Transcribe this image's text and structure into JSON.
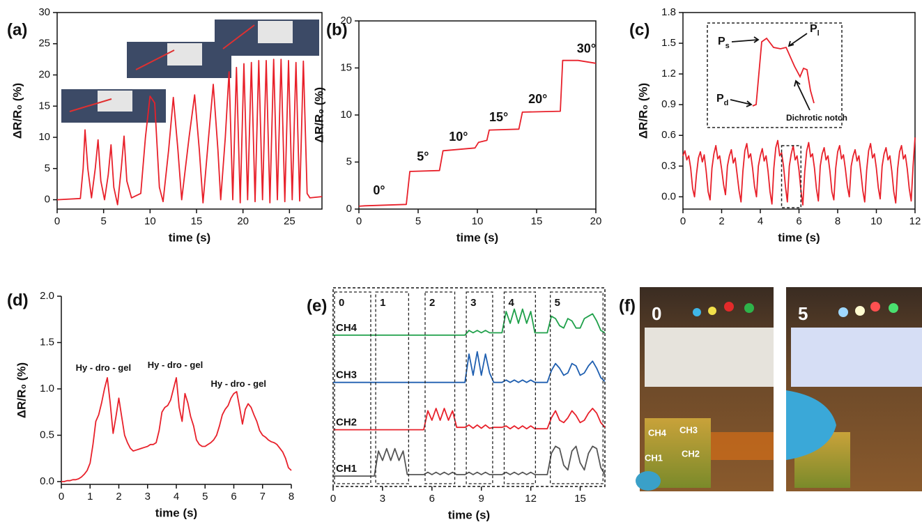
{
  "chart_data": [
    {
      "type": "line",
      "panel_label": "(a)",
      "xlabel": "time (s)",
      "ylabel": "ΔR/R₀ (%)",
      "color": "#e8202a",
      "xlim": [
        0,
        28.5
      ],
      "xticks": [
        0,
        5,
        10,
        15,
        20,
        25
      ],
      "ylim": [
        -1.5,
        30
      ],
      "yticks": [
        0,
        5,
        10,
        15,
        20,
        25,
        30
      ],
      "x": [
        0,
        2.5,
        2.8,
        3.0,
        3.3,
        3.7,
        4.1,
        4.4,
        4.7,
        5.1,
        5.5,
        5.8,
        6.1,
        6.5,
        6.9,
        7.2,
        7.5,
        8.0,
        9.0,
        9.5,
        10.0,
        10.5,
        11.0,
        11.4,
        12.0,
        12.5,
        13.0,
        13.4,
        14.2,
        14.8,
        15.3,
        15.7,
        16.3,
        16.8,
        17.3,
        17.6,
        18.1,
        18.5,
        18.9,
        19.3,
        19.7,
        20.1,
        20.5,
        20.9,
        21.3,
        21.7,
        22.1,
        22.5,
        22.9,
        23.3,
        23.7,
        24.1,
        24.5,
        24.9,
        25.3,
        25.7,
        26.1,
        26.5,
        26.9,
        27.2,
        28.5
      ],
      "values": [
        0,
        0.2,
        5,
        11.2,
        5,
        0.3,
        5,
        9.6,
        3,
        0,
        4,
        8.8,
        2,
        -0.8,
        5,
        10.2,
        3,
        0.3,
        1,
        10,
        16.6,
        15.5,
        2,
        -0.3,
        8,
        16.4,
        8,
        0,
        10,
        16.8,
        8,
        -0.5,
        10,
        18.5,
        8,
        0,
        10,
        20.5,
        0,
        21.2,
        -0.5,
        21.8,
        0,
        22,
        -0.3,
        22.3,
        0,
        22.3,
        -0.5,
        22.5,
        0,
        22.5,
        -0.3,
        22.3,
        0,
        22,
        -0.2,
        22.2,
        1,
        0.3,
        0.5
      ]
    },
    {
      "type": "line",
      "panel_label": "(b)",
      "xlabel": "time (s)",
      "ylabel": "ΔR/R₀ (%)",
      "color": "#e8202a",
      "xlim": [
        0,
        20
      ],
      "xticks": [
        0,
        5,
        10,
        15,
        20
      ],
      "ylim": [
        0,
        20
      ],
      "yticks": [
        0,
        5,
        10,
        15,
        20
      ],
      "annotations": [
        "0°",
        "5°",
        "10°",
        "15°",
        "20°",
        "30°"
      ],
      "x": [
        0,
        0.5,
        4.0,
        4.3,
        6.8,
        7.1,
        9.8,
        10.1,
        10.8,
        11.0,
        13.5,
        13.8,
        17.0,
        17.2,
        18.5,
        20
      ],
      "values": [
        0.3,
        0.35,
        0.5,
        4.0,
        4.1,
        6.2,
        6.5,
        7.1,
        7.3,
        8.4,
        8.5,
        10.3,
        10.4,
        15.8,
        15.8,
        15.5
      ]
    },
    {
      "type": "line",
      "panel_label": "(c)",
      "xlabel": "time (s)",
      "ylabel": "ΔR/R₀ (%)",
      "color": "#e8202a",
      "xlim": [
        0,
        12
      ],
      "xticks": [
        0,
        2,
        4,
        6,
        8,
        10,
        12
      ],
      "ylim": [
        -0.12,
        1.8
      ],
      "yticks": [
        {
          "value": 0,
          "label": "0.0"
        },
        0.3,
        0.6,
        0.9,
        1.2,
        1.5,
        1.8
      ],
      "inset_labels": [
        "Ps",
        "Pl",
        "Pd",
        "Dichrotic notch"
      ],
      "x": [
        0,
        0.1,
        0.2,
        0.3,
        0.4,
        0.5,
        0.6,
        0.7,
        0.8,
        0.9,
        1.0,
        1.1,
        1.2,
        1.3,
        1.4,
        1.5,
        1.6,
        1.7,
        1.8,
        1.9,
        2.0,
        2.1,
        2.2,
        2.3,
        2.4,
        2.5,
        2.6,
        2.7,
        2.8,
        2.9,
        3.0,
        3.1,
        3.2,
        3.3,
        3.4,
        3.5,
        3.6,
        3.7,
        3.8,
        3.9,
        4.0,
        4.1,
        4.2,
        4.3,
        4.4,
        4.5,
        4.6,
        4.7,
        4.8,
        4.9,
        5.0,
        5.1,
        5.2,
        5.3,
        5.4,
        5.5,
        5.6,
        5.7,
        5.8,
        5.9,
        6.0,
        6.1,
        6.2,
        6.3,
        6.4,
        6.5,
        6.6,
        6.7,
        6.8,
        6.9,
        7.0,
        7.1,
        7.2,
        7.3,
        7.4,
        7.5,
        7.6,
        7.7,
        7.8,
        7.9,
        8.0,
        8.1,
        8.2,
        8.3,
        8.4,
        8.5,
        8.6,
        8.7,
        8.8,
        8.9,
        9.0,
        9.1,
        9.2,
        9.3,
        9.4,
        9.5,
        9.6,
        9.7,
        9.8,
        9.9,
        10.0,
        10.1,
        10.2,
        10.3,
        10.4,
        10.5,
        10.6,
        10.7,
        10.8,
        10.9,
        11.0,
        11.1,
        11.2,
        11.3,
        11.4,
        11.5,
        11.6,
        11.7,
        11.8,
        11.9,
        12.0
      ],
      "values": [
        0.4,
        0.45,
        0.36,
        0.4,
        0.28,
        0.08,
        0.0,
        0.22,
        0.38,
        0.44,
        0.34,
        0.41,
        0.25,
        0.05,
        -0.03,
        0.28,
        0.42,
        0.5,
        0.37,
        0.4,
        0.27,
        0.12,
        0.02,
        0.3,
        0.4,
        0.46,
        0.33,
        0.38,
        0.22,
        0.06,
        -0.05,
        0.25,
        0.45,
        0.52,
        0.38,
        0.42,
        0.28,
        0.1,
        0.0,
        0.3,
        0.4,
        0.47,
        0.35,
        0.4,
        0.25,
        0.05,
        -0.07,
        0.28,
        0.48,
        0.55,
        0.4,
        0.43,
        0.3,
        0.1,
        -0.05,
        0.3,
        0.42,
        0.5,
        0.36,
        0.4,
        0.26,
        0.06,
        -0.08,
        0.25,
        0.45,
        0.53,
        0.39,
        0.42,
        0.28,
        0.08,
        -0.04,
        0.3,
        0.42,
        0.48,
        0.36,
        0.4,
        0.25,
        0.05,
        -0.03,
        0.28,
        0.44,
        0.5,
        0.37,
        0.41,
        0.27,
        0.1,
        0.0,
        0.3,
        0.4,
        0.46,
        0.35,
        0.4,
        0.24,
        0.06,
        -0.05,
        0.26,
        0.45,
        0.52,
        0.38,
        0.42,
        0.28,
        0.09,
        -0.02,
        0.3,
        0.42,
        0.48,
        0.36,
        0.4,
        0.25,
        0.05,
        -0.06,
        0.27,
        0.44,
        0.5,
        0.37,
        0.41,
        0.27,
        0.08,
        -0.04,
        0.3,
        0.58
      ]
    },
    {
      "type": "line",
      "panel_label": "(d)",
      "xlabel": "time (s)",
      "ylabel": "ΔR/R₀ (%)",
      "color": "#e8202a",
      "xlim": [
        0,
        8
      ],
      "xticks": [
        0,
        1,
        2,
        3,
        4,
        5,
        6,
        7,
        8
      ],
      "ylim": [
        -0.03,
        2.0
      ],
      "yticks": [
        {
          "value": 0,
          "label": "0.0"
        },
        0.5,
        {
          "value": 1,
          "label": "1.0"
        },
        1.5,
        {
          "value": 2,
          "label": "2.0"
        }
      ],
      "annotations": [
        "Hy - dro - gel",
        "Hy - dro - gel",
        "Hy - dro - gel"
      ],
      "x": [
        0,
        0.1,
        0.2,
        0.3,
        0.4,
        0.5,
        0.6,
        0.7,
        0.8,
        0.9,
        1.0,
        1.1,
        1.2,
        1.3,
        1.4,
        1.5,
        1.6,
        1.7,
        1.8,
        1.9,
        2.0,
        2.1,
        2.2,
        2.3,
        2.4,
        2.5,
        2.6,
        2.7,
        2.8,
        2.9,
        3.0,
        3.1,
        3.2,
        3.3,
        3.4,
        3.5,
        3.6,
        3.7,
        3.8,
        3.9,
        4.0,
        4.1,
        4.2,
        4.3,
        4.4,
        4.5,
        4.6,
        4.7,
        4.8,
        4.9,
        5.0,
        5.1,
        5.2,
        5.3,
        5.4,
        5.5,
        5.6,
        5.7,
        5.8,
        5.9,
        6.0,
        6.1,
        6.2,
        6.3,
        6.4,
        6.5,
        6.6,
        6.7,
        6.8,
        6.9,
        7.0,
        7.1,
        7.2,
        7.3,
        7.4,
        7.5,
        7.6,
        7.7,
        7.8,
        7.9,
        8.0
      ],
      "values": [
        0,
        0,
        0.01,
        0.01,
        0.02,
        0.02,
        0.03,
        0.05,
        0.08,
        0.12,
        0.2,
        0.4,
        0.65,
        0.72,
        0.85,
        1.0,
        1.12,
        0.85,
        0.52,
        0.7,
        0.9,
        0.7,
        0.5,
        0.42,
        0.36,
        0.33,
        0.34,
        0.35,
        0.36,
        0.37,
        0.38,
        0.4,
        0.4,
        0.42,
        0.55,
        0.75,
        0.8,
        0.82,
        0.88,
        1.0,
        1.12,
        0.8,
        0.65,
        0.95,
        0.85,
        0.7,
        0.6,
        0.45,
        0.4,
        0.38,
        0.38,
        0.4,
        0.42,
        0.45,
        0.5,
        0.6,
        0.72,
        0.78,
        0.82,
        0.9,
        0.95,
        0.97,
        0.8,
        0.62,
        0.78,
        0.84,
        0.8,
        0.72,
        0.65,
        0.55,
        0.5,
        0.48,
        0.45,
        0.43,
        0.42,
        0.4,
        0.36,
        0.32,
        0.25,
        0.15,
        0.12
      ]
    },
    {
      "type": "line",
      "panel_label": "(e)",
      "xlabel": "time (s)",
      "xlim": [
        0,
        16.5
      ],
      "xticks": [
        0,
        3,
        6,
        9,
        12,
        15
      ],
      "ylim": [
        -0.2,
        4.0
      ],
      "window_labels": [
        "0",
        "1",
        "2",
        "3",
        "4",
        "5"
      ],
      "x": [
        0,
        0.25,
        0.5,
        0.75,
        1,
        1.25,
        1.5,
        1.75,
        2,
        2.25,
        2.5,
        2.75,
        3,
        3.25,
        3.5,
        3.75,
        4,
        4.25,
        4.5,
        4.75,
        5,
        5.25,
        5.5,
        5.75,
        6,
        6.25,
        6.5,
        6.75,
        7,
        7.25,
        7.5,
        7.75,
        8,
        8.25,
        8.5,
        8.75,
        9,
        9.25,
        9.5,
        9.75,
        10,
        10.25,
        10.5,
        10.75,
        11,
        11.25,
        11.5,
        11.75,
        12,
        12.25,
        12.5,
        12.75,
        13,
        13.25,
        13.5,
        13.75,
        14,
        14.25,
        14.5,
        14.75,
        15,
        15.25,
        15.5,
        15.75,
        16,
        16.25,
        16.5
      ],
      "series": [
        {
          "name": "CH1",
          "color": "#555555",
          "values": [
            0.02,
            0.02,
            0.02,
            0.02,
            0.02,
            0.02,
            0.02,
            0.02,
            0.02,
            0.02,
            0.02,
            0.55,
            0.35,
            0.6,
            0.35,
            0.6,
            0.35,
            0.55,
            0.05,
            0.05,
            0.05,
            0.05,
            0.05,
            0.1,
            0.05,
            0.1,
            0.05,
            0.1,
            0.05,
            0.1,
            0.05,
            0.05,
            0.05,
            0.1,
            0.05,
            0.1,
            0.05,
            0.1,
            0.05,
            0.05,
            0.05,
            0.05,
            0.1,
            0.05,
            0.1,
            0.05,
            0.1,
            0.05,
            0.1,
            0.05,
            0.05,
            0.05,
            0.05,
            0.5,
            0.65,
            0.6,
            0.25,
            0.15,
            0.55,
            0.65,
            0.3,
            0.15,
            0.5,
            0.65,
            0.6,
            0.2,
            0.05
          ]
        },
        {
          "name": "CH2",
          "color": "#e8202a",
          "values": [
            1.0,
            1.0,
            1.0,
            1.0,
            1.0,
            1.0,
            1.0,
            1.0,
            1.0,
            1.0,
            1.0,
            1.0,
            1.0,
            1.0,
            1.0,
            1.0,
            1.0,
            1.0,
            1.0,
            1.0,
            1.0,
            1.0,
            1.0,
            1.4,
            1.2,
            1.45,
            1.2,
            1.45,
            1.2,
            1.4,
            1.05,
            1.05,
            1.05,
            1.1,
            1.03,
            1.1,
            1.03,
            1.1,
            1.03,
            1.05,
            1.05,
            1.05,
            1.08,
            1.02,
            1.08,
            1.02,
            1.08,
            1.02,
            1.08,
            1.02,
            1.02,
            1.02,
            1.02,
            1.25,
            1.4,
            1.2,
            1.15,
            1.25,
            1.4,
            1.3,
            1.15,
            1.2,
            1.35,
            1.45,
            1.35,
            1.15,
            1.05
          ]
        },
        {
          "name": "CH3",
          "color": "#1f5fb0",
          "values": [
            2.0,
            2.0,
            2.0,
            2.0,
            2.0,
            2.0,
            2.0,
            2.0,
            2.0,
            2.0,
            2.0,
            2.0,
            2.0,
            2.0,
            2.0,
            2.0,
            2.0,
            2.0,
            2.0,
            2.0,
            2.0,
            2.0,
            2.0,
            2.0,
            2.0,
            2.0,
            2.0,
            2.0,
            2.0,
            2.0,
            2.0,
            2.0,
            2.0,
            2.6,
            2.15,
            2.65,
            2.15,
            2.6,
            2.2,
            2.0,
            2.0,
            2.0,
            2.05,
            2.0,
            2.05,
            2.0,
            2.05,
            2.0,
            2.05,
            2.0,
            2.0,
            2.0,
            2.0,
            2.25,
            2.4,
            2.3,
            2.15,
            2.2,
            2.4,
            2.35,
            2.15,
            2.2,
            2.35,
            2.45,
            2.3,
            2.1,
            2.02
          ]
        },
        {
          "name": "CH4",
          "color": "#1fa04a",
          "values": [
            3.0,
            3.0,
            3.0,
            3.0,
            3.0,
            3.0,
            3.0,
            3.0,
            3.0,
            3.0,
            3.0,
            3.0,
            3.0,
            3.0,
            3.0,
            3.0,
            3.0,
            3.0,
            3.0,
            3.0,
            3.0,
            3.0,
            3.0,
            3.0,
            3.0,
            3.0,
            3.0,
            3.0,
            3.0,
            3.0,
            3.0,
            3.0,
            3.0,
            3.1,
            3.05,
            3.1,
            3.05,
            3.1,
            3.05,
            3.05,
            3.05,
            3.05,
            3.5,
            3.25,
            3.55,
            3.25,
            3.55,
            3.25,
            3.5,
            3.05,
            3.05,
            3.05,
            3.05,
            3.4,
            3.35,
            3.2,
            3.15,
            3.35,
            3.3,
            3.15,
            3.15,
            3.35,
            3.4,
            3.45,
            3.3,
            3.1,
            3.05
          ]
        }
      ]
    }
  ],
  "photo_panel": {
    "panel_label": "(f)",
    "photos": [
      {
        "label": "0",
        "tags": [
          "CH4",
          "CH3",
          "CH1",
          "CH2"
        ]
      },
      {
        "label": "5"
      }
    ]
  }
}
